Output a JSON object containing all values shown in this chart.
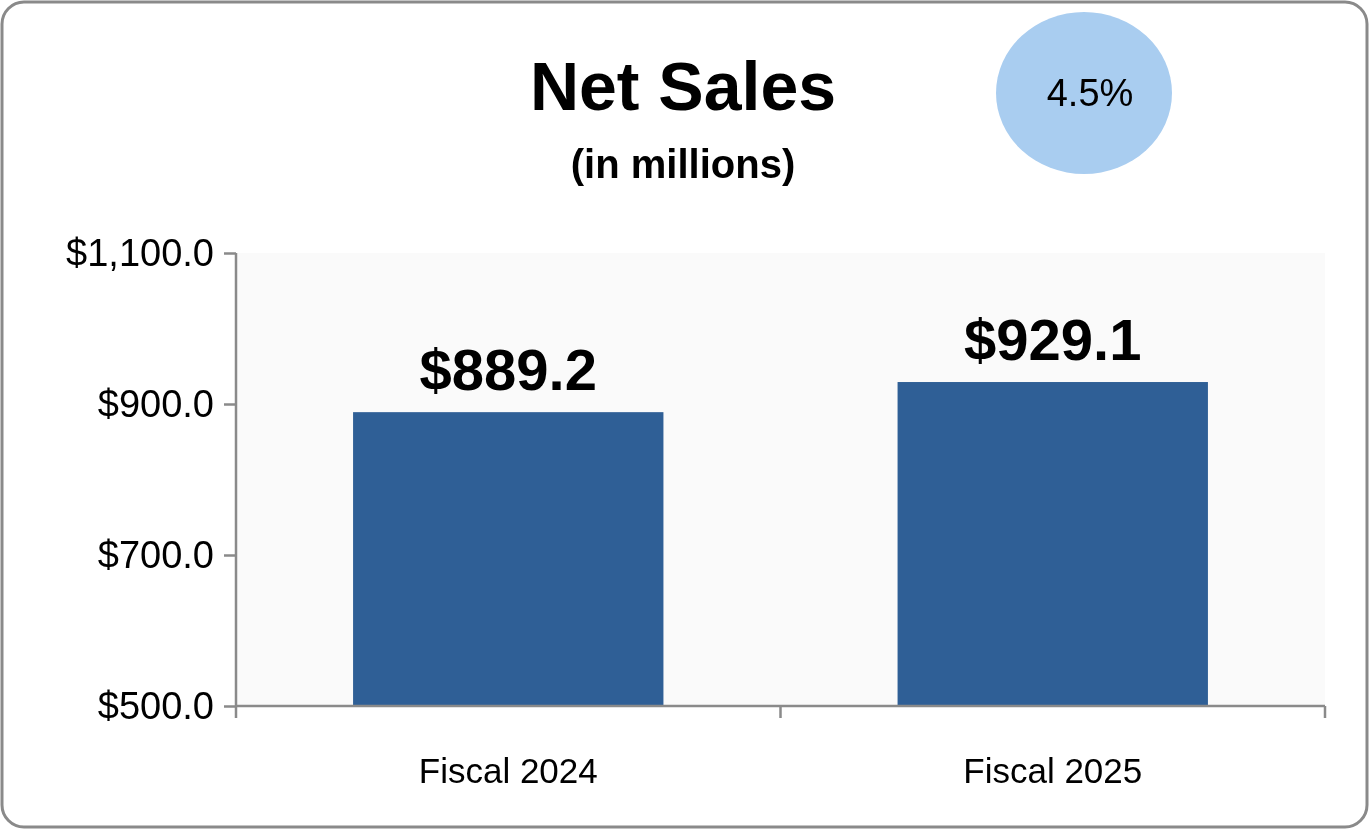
{
  "chart_data": {
    "type": "bar",
    "title": "Net Sales",
    "subtitle": "(in millions)",
    "categories": [
      "Fiscal 2024",
      "Fiscal 2025"
    ],
    "values": [
      889.2,
      929.1
    ],
    "color": "#2f5f96",
    "value_labels": [
      "$889.2",
      "$929.1"
    ],
    "ylim": [
      500,
      1100
    ],
    "yticks": [
      {
        "value": 500,
        "label": "$500.0"
      },
      {
        "value": 700,
        "label": "$700.0"
      },
      {
        "value": 900,
        "label": "$900.0"
      },
      {
        "value": 1100,
        "label": "$1,100.0"
      }
    ],
    "annotations": [
      "4.5%"
    ]
  }
}
